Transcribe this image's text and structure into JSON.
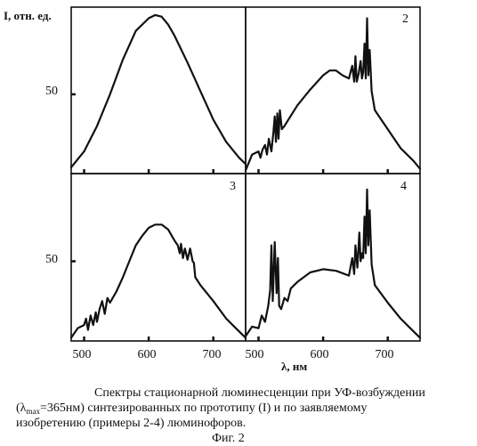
{
  "chart_data": [
    {
      "type": "line",
      "panel": "1",
      "ylabel": "I, отн. ед.",
      "x_ticks": [
        500,
        600,
        700
      ],
      "y_tick_label": "50",
      "xlim": [
        480,
        750
      ],
      "ylim": [
        0,
        105
      ],
      "series": [
        {
          "x": [
            480,
            500,
            520,
            540,
            560,
            580,
            600,
            610,
            620,
            630,
            640,
            660,
            680,
            700,
            720,
            740,
            750
          ],
          "y": [
            4,
            14,
            30,
            50,
            72,
            90,
            98,
            100,
            99,
            94,
            87,
            70,
            52,
            34,
            20,
            10,
            6
          ]
        }
      ]
    },
    {
      "type": "line",
      "panel": "2",
      "x_ticks": [
        500,
        600,
        700
      ],
      "xlim": [
        480,
        750
      ],
      "ylim": [
        0,
        105
      ],
      "series": [
        {
          "x": [
            480,
            490,
            500,
            503,
            506,
            510,
            513,
            516,
            520,
            523,
            525,
            527,
            529,
            531,
            533,
            536,
            540,
            560,
            580,
            600,
            610,
            620,
            630,
            640,
            645,
            648,
            650,
            652,
            655,
            658,
            660,
            662,
            664,
            666,
            668,
            670,
            672,
            675,
            680,
            700,
            720,
            740,
            750
          ],
          "y": [
            2,
            12,
            14,
            10,
            15,
            18,
            12,
            22,
            14,
            26,
            36,
            20,
            38,
            22,
            40,
            28,
            30,
            43,
            53,
            62,
            65,
            65,
            62,
            60,
            68,
            58,
            74,
            58,
            63,
            71,
            60,
            64,
            82,
            60,
            98,
            62,
            78,
            52,
            40,
            28,
            16,
            8,
            3
          ]
        }
      ]
    },
    {
      "type": "line",
      "panel": "3",
      "y_tick_label": "50",
      "x_ticks": [
        500,
        600,
        700
      ],
      "x_tick_labels": [
        "500",
        "600",
        "700"
      ],
      "xlim": [
        480,
        750
      ],
      "ylim": [
        0,
        105
      ],
      "series": [
        {
          "x": [
            480,
            490,
            500,
            503,
            506,
            510,
            514,
            518,
            520,
            524,
            528,
            532,
            536,
            540,
            550,
            560,
            570,
            580,
            590,
            600,
            610,
            620,
            630,
            640,
            645,
            648,
            650,
            653,
            656,
            660,
            664,
            668,
            670,
            672,
            680,
            700,
            720,
            740,
            750
          ],
          "y": [
            2,
            8,
            10,
            14,
            7,
            16,
            10,
            18,
            12,
            20,
            25,
            17,
            27,
            24,
            31,
            40,
            50,
            60,
            66,
            71,
            73,
            73,
            70,
            63,
            60,
            55,
            61,
            52,
            58,
            51,
            58,
            50,
            49,
            40,
            35,
            25,
            14,
            6,
            2
          ]
        }
      ]
    },
    {
      "type": "line",
      "panel": "4",
      "x_ticks": [
        500,
        600,
        700
      ],
      "x_tick_labels": [
        "500",
        "600",
        "700"
      ],
      "xlabel": "λ, нм",
      "xlim": [
        480,
        750
      ],
      "ylim": [
        0,
        105
      ],
      "series": [
        {
          "x": [
            480,
            490,
            500,
            505,
            510,
            515,
            518,
            520,
            522,
            525,
            528,
            530,
            532,
            535,
            540,
            545,
            550,
            560,
            580,
            600,
            620,
            640,
            645,
            648,
            650,
            653,
            656,
            658,
            660,
            662,
            664,
            666,
            668,
            670,
            672,
            675,
            680,
            700,
            720,
            740,
            750
          ],
          "y": [
            3,
            9,
            8,
            16,
            12,
            22,
            32,
            60,
            25,
            62,
            30,
            52,
            22,
            20,
            27,
            25,
            33,
            37,
            43,
            45,
            44,
            41,
            52,
            42,
            60,
            46,
            68,
            50,
            55,
            52,
            78,
            55,
            95,
            60,
            82,
            48,
            35,
            24,
            14,
            6,
            2
          ]
        }
      ]
    }
  ],
  "axis_labels": {
    "ylabel": "I, отн. ед.",
    "xlabel": "λ, нм",
    "x_ticks": [
      "500",
      "600",
      "700"
    ],
    "y_tick_top": "50",
    "y_tick_bottom": "50",
    "x_ticks_right": [
      "500",
      "600",
      "700"
    ]
  },
  "panel_labels": {
    "p2": "2",
    "p3": "3",
    "p4": "4"
  },
  "caption": {
    "line1": "Спектры стационарной люминесценции при УФ-возбуждении",
    "line2_pre": "(λ",
    "line2_sub": "max",
    "line2_post": "=365нм) синтезированных по прототипу (I) и по заявляемому",
    "line3": "изобретению (примеры 2-4) люминофоров.",
    "line4": "Фиг. 2"
  }
}
